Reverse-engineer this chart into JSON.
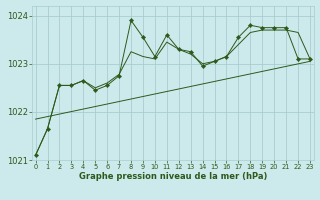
{
  "title": "Graphe pression niveau de la mer (hPa)",
  "xlabel_ticks": [
    0,
    1,
    2,
    3,
    4,
    5,
    6,
    7,
    8,
    9,
    10,
    11,
    12,
    13,
    14,
    15,
    16,
    17,
    18,
    19,
    20,
    21,
    22,
    23
  ],
  "ylim": [
    1021.0,
    1024.2
  ],
  "yticks": [
    1021,
    1022,
    1023,
    1024
  ],
  "xlim": [
    -0.3,
    23.3
  ],
  "bg_color": "#cce9ec",
  "grid_color": "#a8cdd0",
  "line_color": "#2d5a1b",
  "marker_color": "#2d5a1b",
  "title_color": "#2d5a1b",
  "tick_color": "#2d5a1b",
  "series_main_x": [
    0,
    1,
    2,
    3,
    4,
    5,
    6,
    7,
    8,
    9,
    10,
    11,
    12,
    13,
    14,
    15,
    16,
    17,
    18,
    19,
    20,
    21,
    22,
    23
  ],
  "series_main_y": [
    1021.1,
    1021.65,
    1022.55,
    1022.55,
    1022.65,
    1022.45,
    1022.55,
    1022.75,
    1023.9,
    1023.55,
    1023.15,
    1023.6,
    1023.3,
    1023.25,
    1022.95,
    1023.05,
    1023.15,
    1023.55,
    1023.8,
    1023.75,
    1023.75,
    1023.75,
    1023.1,
    1023.1
  ],
  "series_smooth_x": [
    0,
    1,
    2,
    3,
    4,
    5,
    6,
    7,
    8,
    9,
    10,
    11,
    12,
    13,
    14,
    15,
    16,
    17,
    18,
    19,
    20,
    21,
    22,
    23
  ],
  "series_smooth_y": [
    1021.1,
    1021.65,
    1022.55,
    1022.55,
    1022.65,
    1022.5,
    1022.6,
    1022.78,
    1023.25,
    1023.15,
    1023.1,
    1023.45,
    1023.3,
    1023.2,
    1023.0,
    1023.05,
    1023.15,
    1023.4,
    1023.65,
    1023.7,
    1023.7,
    1023.7,
    1023.65,
    1023.1
  ],
  "trend_x": [
    0,
    23
  ],
  "trend_y": [
    1021.85,
    1023.05
  ]
}
